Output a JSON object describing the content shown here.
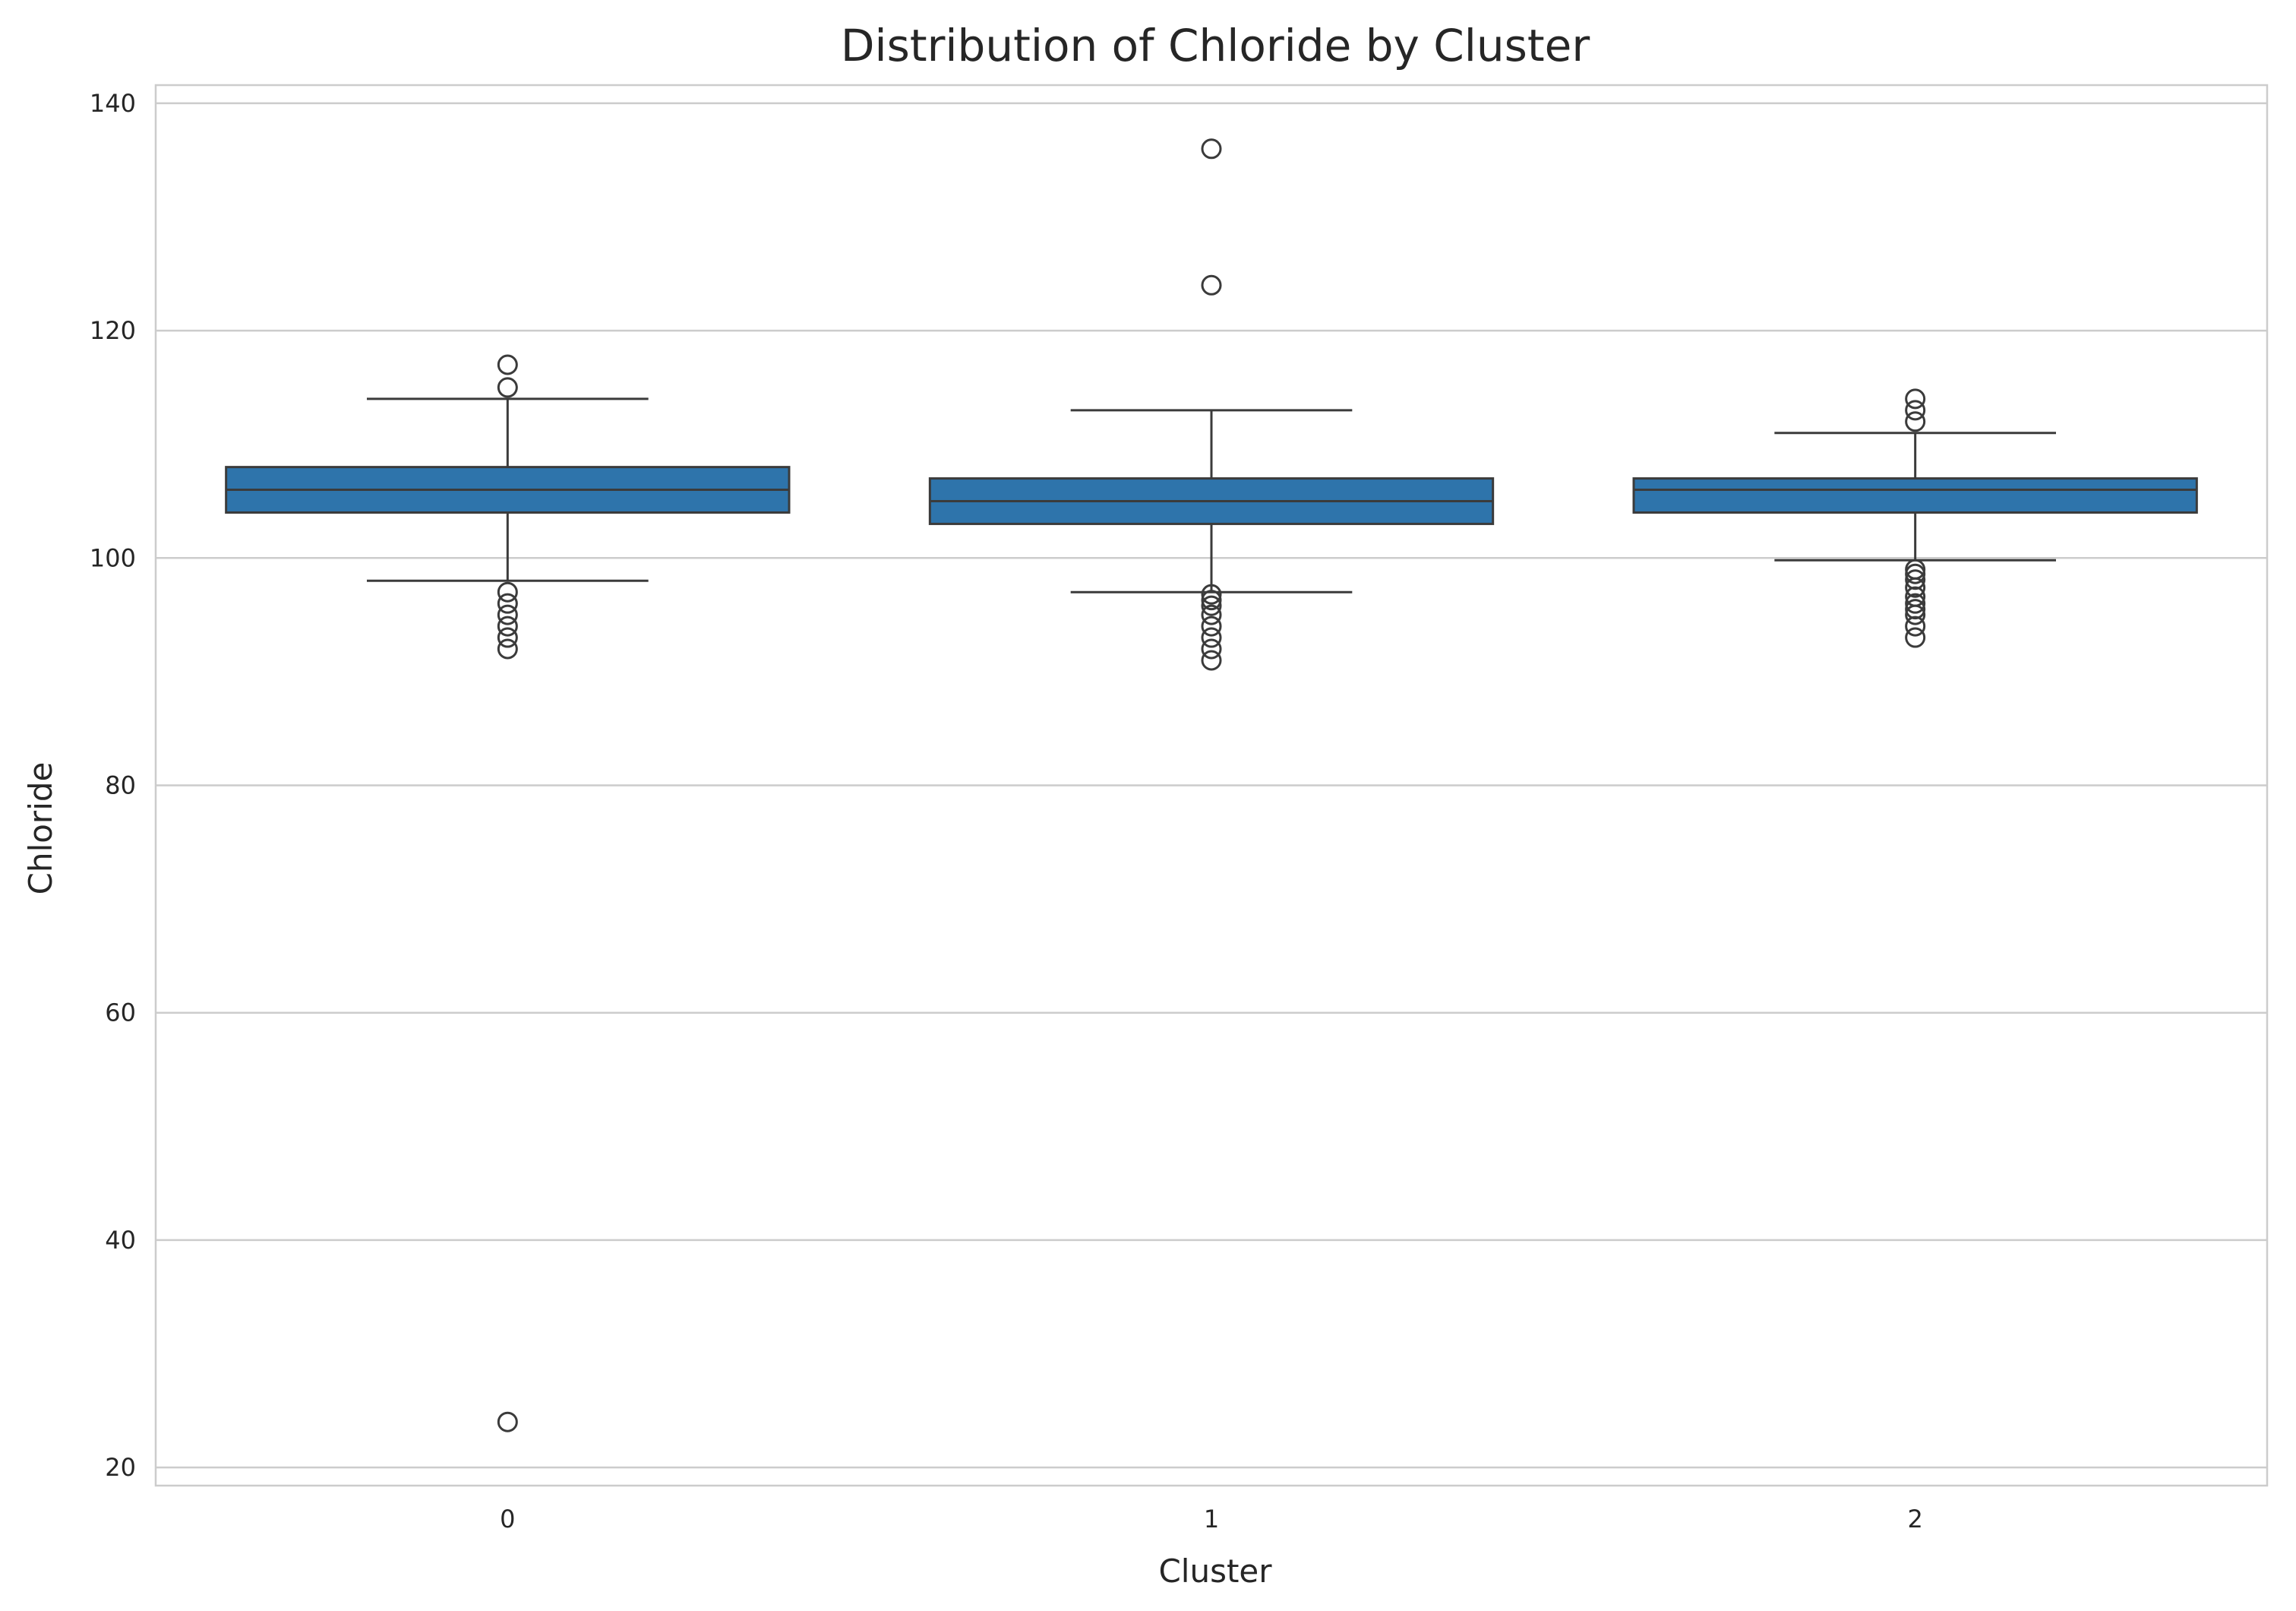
{
  "chart_data": {
    "type": "box",
    "title": "Distribution of Chloride by Cluster",
    "xlabel": "Cluster",
    "ylabel": "Chloride",
    "ylim": [
      18.4,
      141.6
    ],
    "yticks": [
      20,
      40,
      60,
      80,
      100,
      120,
      140
    ],
    "grid": true,
    "legend": "none",
    "box_color": "#2e74ab",
    "line_color": "#3b3b3b",
    "grid_color": "#cccccc",
    "categories": [
      "0",
      "1",
      "2"
    ],
    "boxes": [
      {
        "category": "0",
        "q1": 104,
        "median": 106,
        "q3": 108,
        "whisker_low": 98,
        "whisker_high": 114,
        "outliers": [
          117,
          115,
          97,
          96,
          95,
          94,
          93,
          92,
          24
        ]
      },
      {
        "category": "1",
        "q1": 103,
        "median": 105,
        "q3": 107,
        "whisker_low": 97,
        "whisker_high": 113,
        "outliers": [
          136,
          124,
          96.8,
          96.3,
          95.8,
          95,
          94,
          93,
          92,
          91
        ]
      },
      {
        "category": "2",
        "q1": 104,
        "median": 106,
        "q3": 107,
        "whisker_low": 99.8,
        "whisker_high": 111,
        "outliers": [
          114,
          113,
          112,
          99,
          98.6,
          98.1,
          97.4,
          96.6,
          96,
          95.5,
          95,
          94,
          93
        ]
      }
    ]
  }
}
